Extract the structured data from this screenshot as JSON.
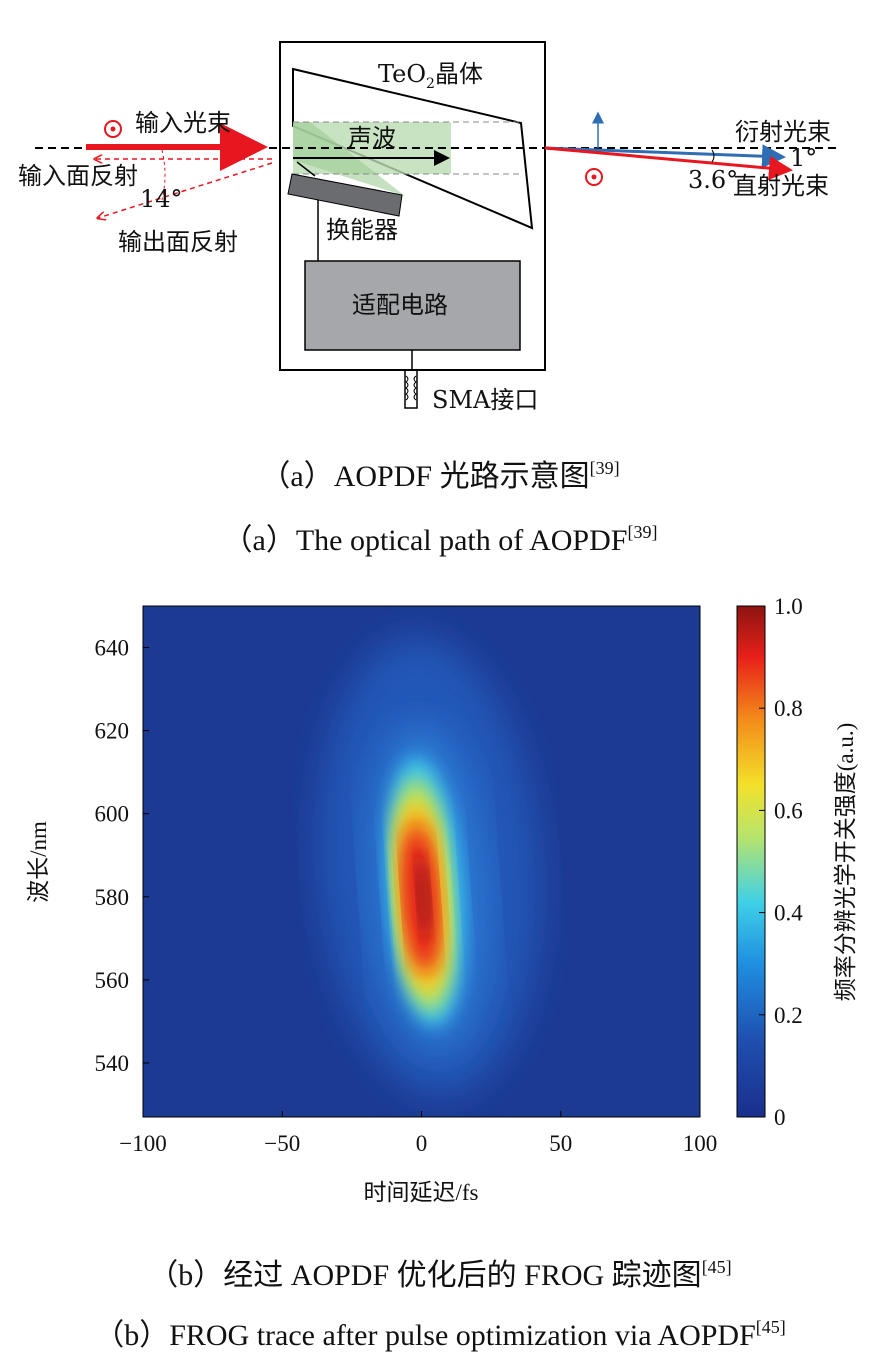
{
  "diagram": {
    "crystal_label": "TeO",
    "crystal_sub": "2",
    "crystal_suffix": "晶体",
    "input_beam": "输入光束",
    "input_face_reflection": "输入面反射",
    "output_face_reflection": "输出面反射",
    "angle_reflection": "14°",
    "acoustic_wave": "声波",
    "transducer": "换能器",
    "matching_circuit": "适配电路",
    "sma_port": "SMA接口",
    "diffracted_beam": "衍射光束",
    "direct_beam": "直射光束",
    "angle_diffracted": "1°",
    "angle_direct": "3.6°",
    "colors": {
      "beam_red": "#e8161f",
      "beam_blue": "#2f6db5",
      "acoustic_green": "#b9dcb2",
      "circuit_gray": "#a6a7ab"
    }
  },
  "captions": {
    "a_cn": "（a）AOPDF 光路示意图",
    "a_cn_ref": "[39]",
    "a_en": "（a）The optical path of AOPDF",
    "a_en_ref": "[39]",
    "b_cn": "（b）经过 AOPDF 优化后的 FROG 踪迹图",
    "b_cn_ref": "[45]",
    "b_en": "（b）FROG trace after pulse optimization via AOPDF",
    "b_en_ref": "[45]"
  },
  "chart_data": {
    "type": "heatmap",
    "xlabel": "时间延迟/fs",
    "ylabel": "波长/nm",
    "colorbar_label": "频率分辨光学开关强度(a.u.)",
    "xlim": [
      -100,
      100
    ],
    "ylim": [
      527,
      650
    ],
    "xticks": [
      -100,
      -50,
      0,
      50,
      100
    ],
    "xtick_labels": [
      "−100",
      "−50",
      "0",
      "50",
      "100"
    ],
    "yticks": [
      540,
      560,
      580,
      600,
      620,
      640
    ],
    "ytick_labels": [
      "540",
      "560",
      "580",
      "600",
      "620",
      "640"
    ],
    "colorbar_ticks": [
      0,
      0.2,
      0.4,
      0.6,
      0.8,
      1.0
    ],
    "colorbar_tick_labels": [
      "0",
      "0.2",
      "0.4",
      "0.6",
      "0.8",
      "1.0"
    ],
    "clim": [
      0,
      1
    ],
    "colormap": "jet",
    "peak": {
      "delay_fs": 0,
      "wavelength_nm": 580,
      "intensity": 1.0
    },
    "signal_extent": {
      "delay_fs": [
        -15,
        15
      ],
      "wavelength_nm": [
        545,
        615
      ]
    }
  }
}
